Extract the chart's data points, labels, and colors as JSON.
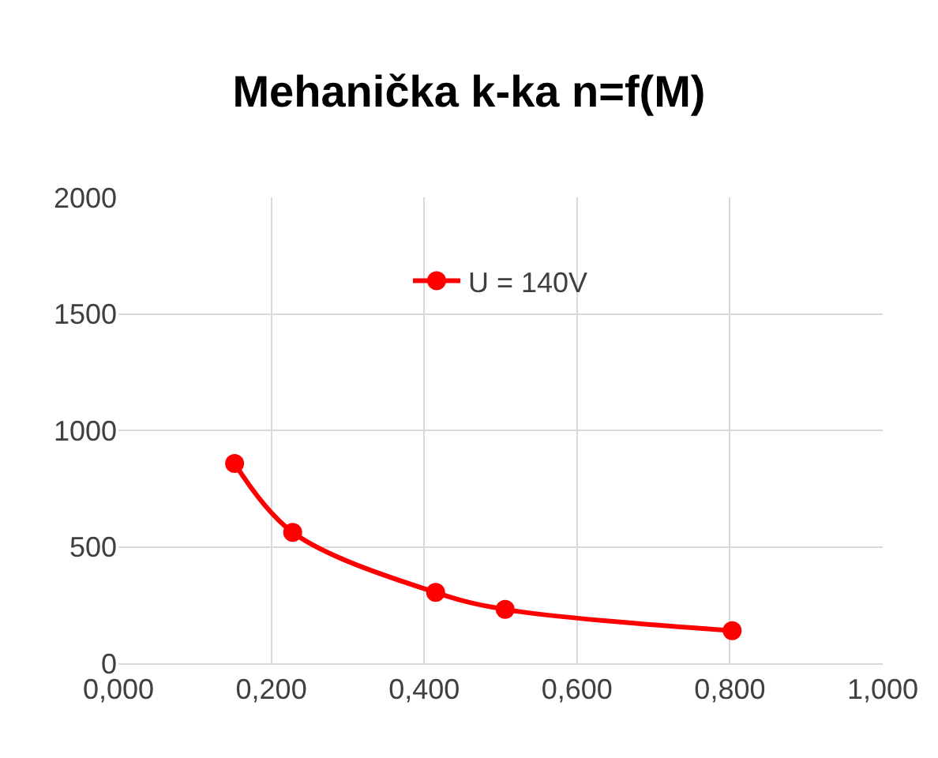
{
  "chart_data": {
    "type": "line",
    "title": "Mehanička k-ka n=f(M)",
    "x": [
      0.152,
      0.228,
      0.415,
      0.506,
      0.803
    ],
    "series": [
      {
        "name": "U = 140V",
        "color": "#ff0000",
        "values": [
          858,
          562,
          304,
          231,
          140
        ]
      }
    ],
    "xlim": [
      0,
      1
    ],
    "xticks": [
      {
        "value": 0,
        "label": "0,000"
      },
      {
        "value": 0.2,
        "label": "0,200"
      },
      {
        "value": 0.4,
        "label": "0,400"
      },
      {
        "value": 0.6,
        "label": "0,600"
      },
      {
        "value": 0.8,
        "label": "0,800"
      },
      {
        "value": 1,
        "label": "1,000"
      }
    ],
    "ylim": [
      0,
      2000
    ],
    "yticks": [
      0,
      500,
      1000,
      1500,
      2000
    ],
    "grid": true,
    "legend": "top",
    "marker": "circle",
    "line_style": "solid"
  }
}
